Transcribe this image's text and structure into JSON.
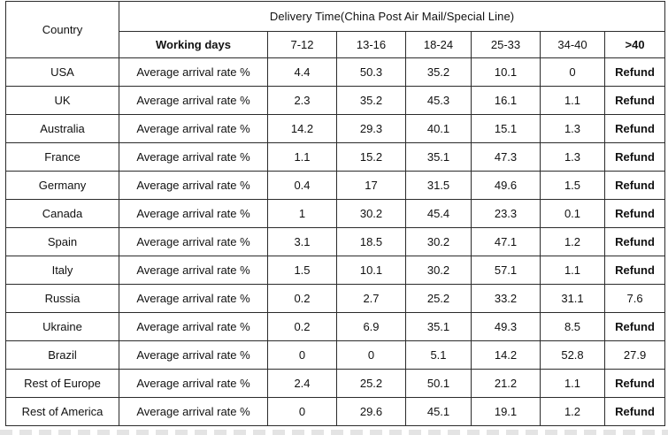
{
  "table": {
    "country_header": "Country",
    "title": "Delivery Time(China Post Air Mail/Special Line)",
    "working_days_label": "Working days",
    "buckets": [
      "7-12",
      "13-16",
      "18-24",
      "25-33",
      "34-40",
      ">40"
    ],
    "rows": [
      {
        "country": "USA",
        "metric": "Average arrival rate %",
        "values": [
          "4.4",
          "50.3",
          "35.2",
          "10.1",
          "0",
          "Refund"
        ]
      },
      {
        "country": "UK",
        "metric": "Average arrival rate %",
        "values": [
          "2.3",
          "35.2",
          "45.3",
          "16.1",
          "1.1",
          "Refund"
        ]
      },
      {
        "country": "Australia",
        "metric": "Average arrival rate %",
        "values": [
          "14.2",
          "29.3",
          "40.1",
          "15.1",
          "1.3",
          "Refund"
        ]
      },
      {
        "country": "France",
        "metric": "Average arrival rate %",
        "values": [
          "1.1",
          "15.2",
          "35.1",
          "47.3",
          "1.3",
          "Refund"
        ]
      },
      {
        "country": "Germany",
        "metric": "Average arrival rate %",
        "values": [
          "0.4",
          "17",
          "31.5",
          "49.6",
          "1.5",
          "Refund"
        ]
      },
      {
        "country": "Canada",
        "metric": "Average arrival rate %",
        "values": [
          "1",
          "30.2",
          "45.4",
          "23.3",
          "0.1",
          "Refund"
        ]
      },
      {
        "country": "Spain",
        "metric": "Average arrival rate %",
        "values": [
          "3.1",
          "18.5",
          "30.2",
          "47.1",
          "1.2",
          "Refund"
        ]
      },
      {
        "country": "Italy",
        "metric": "Average arrival rate %",
        "values": [
          "1.5",
          "10.1",
          "30.2",
          "57.1",
          "1.1",
          "Refund"
        ]
      },
      {
        "country": "Russia",
        "metric": "Average arrival rate %",
        "values": [
          "0.2",
          "2.7",
          "25.2",
          "33.2",
          "31.1",
          "7.6"
        ]
      },
      {
        "country": "Ukraine",
        "metric": "Average arrival rate %",
        "values": [
          "0.2",
          "6.9",
          "35.1",
          "49.3",
          "8.5",
          "Refund"
        ]
      },
      {
        "country": "Brazil",
        "metric": "Average arrival rate %",
        "values": [
          "0",
          "0",
          "5.1",
          "14.2",
          "52.8",
          "27.9"
        ]
      },
      {
        "country": "Rest of Europe",
        "metric": "Average arrival rate %",
        "values": [
          "2.4",
          "25.2",
          "50.1",
          "21.2",
          "1.1",
          "Refund"
        ]
      },
      {
        "country": "Rest of America",
        "metric": "Average arrival rate %",
        "values": [
          "0",
          "29.6",
          "45.1",
          "19.1",
          "1.2",
          "Refund"
        ]
      }
    ]
  }
}
